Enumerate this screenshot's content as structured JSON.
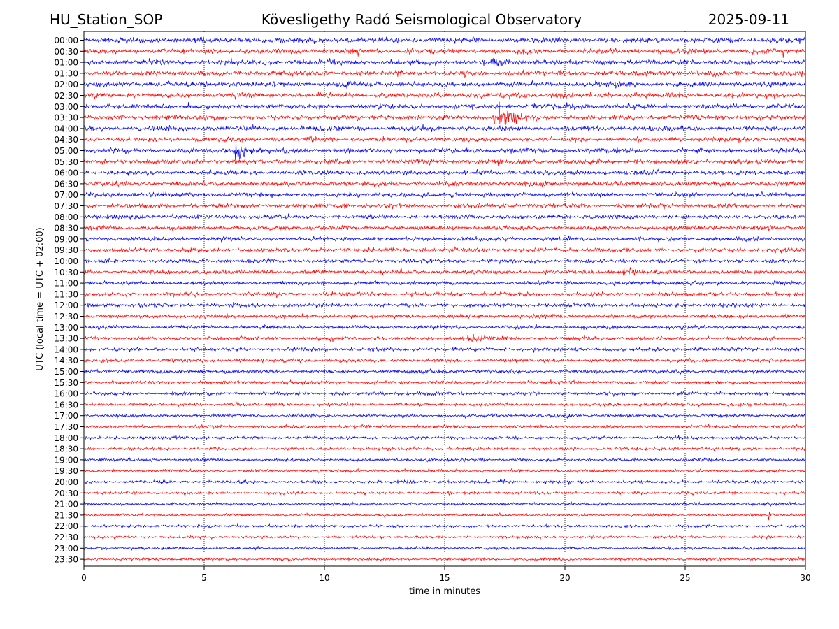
{
  "header": {
    "station": "HU_Station_SOP",
    "observatory": "Kövesligethy Radó Seismological Observatory",
    "date": "2025-09-11"
  },
  "chart_data": {
    "type": "line",
    "title": "Kövesligethy Radó Seismological Observatory",
    "xlabel": "time in minutes",
    "ylabel": "UTC (local time = UTC + 02:00)",
    "xlim": [
      0,
      30
    ],
    "x_ticks": [
      "0",
      "5",
      "10",
      "15",
      "20",
      "25",
      "30"
    ],
    "grid": "vertical dotted lines at x ticks",
    "colors": [
      "#0000ee",
      "#ff0000"
    ],
    "rows": [
      "00:00",
      "00:30",
      "01:00",
      "01:30",
      "02:00",
      "02:30",
      "03:00",
      "03:30",
      "04:00",
      "04:30",
      "05:00",
      "05:30",
      "06:00",
      "06:30",
      "07:00",
      "07:30",
      "08:00",
      "08:30",
      "09:00",
      "09:30",
      "10:00",
      "10:30",
      "11:00",
      "11:30",
      "12:00",
      "12:30",
      "13:00",
      "13:30",
      "14:00",
      "14:30",
      "15:00",
      "15:30",
      "16:00",
      "16:30",
      "17:00",
      "17:30",
      "18:00",
      "18:30",
      "19:00",
      "19:30",
      "20:00",
      "20:30",
      "21:00",
      "21:30",
      "22:00",
      "22:30",
      "23:00",
      "23:30"
    ],
    "events": [
      {
        "row": "03:30",
        "start_min": 17.0,
        "duration_min": 2.0,
        "peak_amplitude": 3.2
      },
      {
        "row": "05:00",
        "start_min": 6.2,
        "duration_min": 1.2,
        "peak_amplitude": 3.0
      },
      {
        "row": "10:30",
        "start_min": 22.4,
        "duration_min": 1.0,
        "peak_amplitude": 1.4
      },
      {
        "row": "13:30",
        "start_min": 15.6,
        "duration_min": 3.0,
        "peak_amplitude": 0.6
      },
      {
        "row": "01:00",
        "start_min": 16.9,
        "duration_min": 1.0,
        "peak_amplitude": 0.9
      },
      {
        "row": "03:00",
        "start_min": 20.0,
        "duration_min": 0.8,
        "peak_amplitude": 0.9
      },
      {
        "row": "21:30",
        "start_min": 28.4,
        "duration_min": 0.8,
        "peak_amplitude": 0.6
      }
    ]
  }
}
